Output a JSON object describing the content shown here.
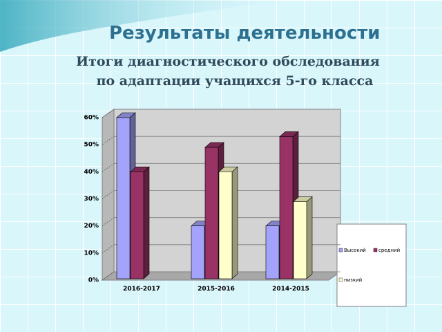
{
  "header": {
    "title": "Результаты деятельности",
    "subtitle_lines": [
      "Итоги диагностического обследования",
      "по адаптации учащихся 5-го класса"
    ]
  },
  "chart_data": {
    "type": "bar3d",
    "categories": [
      "2016-2017",
      "2015-2016",
      "2014-2015"
    ],
    "series": [
      {
        "name": "Высокий",
        "color": "#a3a3fb",
        "values": [
          60,
          20,
          20
        ]
      },
      {
        "name": "средний",
        "color": "#993366",
        "values": [
          40,
          49,
          53
        ]
      },
      {
        "name": "низкий",
        "color": "#ffffcc",
        "values": [
          null,
          40,
          29
        ]
      }
    ],
    "ylim": [
      0,
      60
    ],
    "yticks": [
      {
        "value": 0,
        "label": "0%"
      },
      {
        "value": 10,
        "label": "10%"
      },
      {
        "value": 20,
        "label": "20%"
      },
      {
        "value": 30,
        "label": "30%"
      },
      {
        "value": 40,
        "label": "40%"
      },
      {
        "value": 50,
        "label": "50%"
      },
      {
        "value": 60,
        "label": "60%"
      }
    ],
    "grid": true
  }
}
